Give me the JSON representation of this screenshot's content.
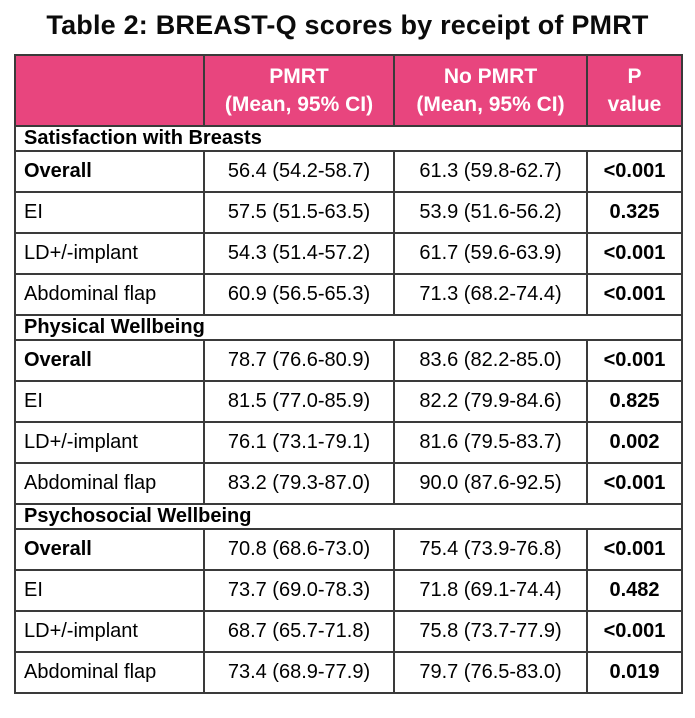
{
  "title": "Table 2: BREAST-Q scores by receipt of PMRT",
  "colors": {
    "header_bg": "#E8457E",
    "header_text": "#FFFFFF",
    "border": "#3A3A3A",
    "text": "#000000",
    "page_bg": "#FFFFFF"
  },
  "table": {
    "header": {
      "corner": "",
      "pmrt_line1": "PMRT",
      "pmrt_line2": "(Mean, 95% CI)",
      "no_pmrt_line1": "No PMRT",
      "no_pmrt_line2": "(Mean, 95% CI)",
      "p_line1": "P",
      "p_line2": "value"
    },
    "sections": [
      {
        "name": "Satisfaction with Breasts",
        "rows": [
          {
            "label": "Overall",
            "pmrt": "56.4 (54.2-58.7)",
            "no_pmrt": "61.3 (59.8-62.7)",
            "p": "<0.001"
          },
          {
            "label": "EI",
            "pmrt": "57.5 (51.5-63.5)",
            "no_pmrt": "53.9 (51.6-56.2)",
            "p": "0.325"
          },
          {
            "label": "LD+/-implant",
            "pmrt": "54.3 (51.4-57.2)",
            "no_pmrt": "61.7 (59.6-63.9)",
            "p": "<0.001"
          },
          {
            "label": "Abdominal flap",
            "pmrt": "60.9 (56.5-65.3)",
            "no_pmrt": "71.3 (68.2-74.4)",
            "p": "<0.001"
          }
        ]
      },
      {
        "name": "Physical Wellbeing",
        "rows": [
          {
            "label": "Overall",
            "pmrt": "78.7 (76.6-80.9)",
            "no_pmrt": "83.6 (82.2-85.0)",
            "p": "<0.001"
          },
          {
            "label": "EI",
            "pmrt": "81.5 (77.0-85.9)",
            "no_pmrt": "82.2 (79.9-84.6)",
            "p": "0.825"
          },
          {
            "label": "LD+/-implant",
            "pmrt": "76.1 (73.1-79.1)",
            "no_pmrt": "81.6 (79.5-83.7)",
            "p": "0.002"
          },
          {
            "label": "Abdominal flap",
            "pmrt": "83.2 (79.3-87.0)",
            "no_pmrt": "90.0 (87.6-92.5)",
            "p": "<0.001"
          }
        ]
      },
      {
        "name": "Psychosocial Wellbeing",
        "rows": [
          {
            "label": "Overall",
            "pmrt": "70.8 (68.6-73.0)",
            "no_pmrt": "75.4 (73.9-76.8)",
            "p": "<0.001"
          },
          {
            "label": "EI",
            "pmrt": "73.7 (69.0-78.3)",
            "no_pmrt": "71.8 (69.1-74.4)",
            "p": "0.482"
          },
          {
            "label": "LD+/-implant",
            "pmrt": "68.7 (65.7-71.8)",
            "no_pmrt": "75.8 (73.7-77.9)",
            "p": "<0.001"
          },
          {
            "label": "Abdominal flap",
            "pmrt": "73.4 (68.9-77.9)",
            "no_pmrt": "79.7 (76.5-83.0)",
            "p": "0.019"
          }
        ]
      }
    ]
  }
}
